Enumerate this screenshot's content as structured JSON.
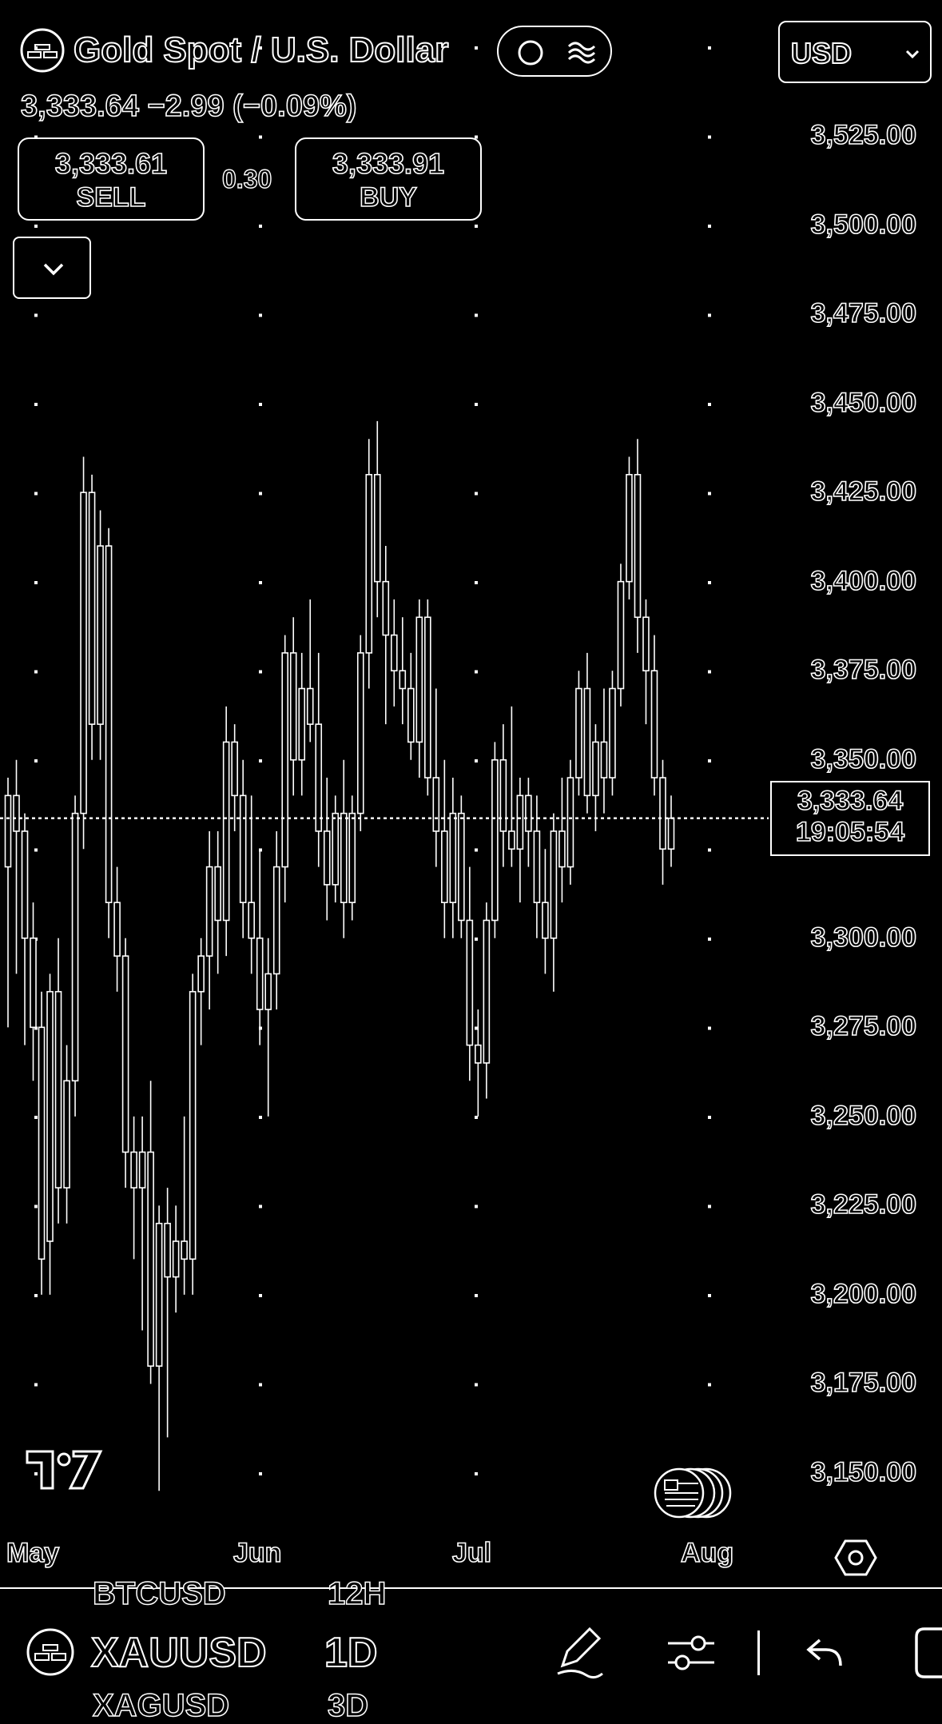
{
  "header": {
    "title": "Gold Spot / U.S. Dollar",
    "price_line": "3,333.64 −2.99 (−0.09%)",
    "currency": "USD",
    "icons": [
      "gold-bars-icon",
      "circle-icon",
      "waves-icon",
      "chevron-down-icon"
    ]
  },
  "trade": {
    "sell_price": "3,333.61",
    "sell_label": "SELL",
    "spread": "0.30",
    "buy_price": "3,333.91",
    "buy_label": "BUY"
  },
  "chart": {
    "current_price": "3,333.64",
    "countdown": "19:05:54"
  },
  "chart_data": {
    "type": "candlestick",
    "symbol": "XAUUSD",
    "interval": "1D",
    "y_ticks": [
      "3,525.00",
      "3,500.00",
      "3,475.00",
      "3,450.00",
      "3,425.00",
      "3,400.00",
      "3,375.00",
      "3,350.00",
      "3,300.00",
      "3,275.00",
      "3,250.00",
      "3,225.00",
      "3,200.00",
      "3,175.00",
      "3,150.00"
    ],
    "ylim": [
      3130,
      3545
    ],
    "x_ticks": [
      "May",
      "Jun",
      "Jul",
      "Aug"
    ],
    "last_price": 3333.64,
    "candles": [
      {
        "o": 3320,
        "h": 3345,
        "l": 3275,
        "c": 3340
      },
      {
        "o": 3340,
        "h": 3350,
        "l": 3290,
        "c": 3330
      },
      {
        "o": 3330,
        "h": 3335,
        "l": 3270,
        "c": 3300
      },
      {
        "o": 3300,
        "h": 3310,
        "l": 3260,
        "c": 3275
      },
      {
        "o": 3275,
        "h": 3285,
        "l": 3200,
        "c": 3210
      },
      {
        "o": 3215,
        "h": 3290,
        "l": 3200,
        "c": 3285
      },
      {
        "o": 3285,
        "h": 3300,
        "l": 3220,
        "c": 3230
      },
      {
        "o": 3230,
        "h": 3270,
        "l": 3220,
        "c": 3260
      },
      {
        "o": 3260,
        "h": 3340,
        "l": 3250,
        "c": 3335
      },
      {
        "o": 3335,
        "h": 3435,
        "l": 3325,
        "c": 3425
      },
      {
        "o": 3425,
        "h": 3430,
        "l": 3350,
        "c": 3360
      },
      {
        "o": 3360,
        "h": 3420,
        "l": 3350,
        "c": 3410
      },
      {
        "o": 3410,
        "h": 3415,
        "l": 3300,
        "c": 3310
      },
      {
        "o": 3310,
        "h": 3320,
        "l": 3285,
        "c": 3295
      },
      {
        "o": 3295,
        "h": 3300,
        "l": 3230,
        "c": 3240
      },
      {
        "o": 3240,
        "h": 3250,
        "l": 3210,
        "c": 3230
      },
      {
        "o": 3230,
        "h": 3250,
        "l": 3190,
        "c": 3240
      },
      {
        "o": 3240,
        "h": 3260,
        "l": 3175,
        "c": 3180
      },
      {
        "o": 3180,
        "h": 3225,
        "l": 3145,
        "c": 3220
      },
      {
        "o": 3220,
        "h": 3230,
        "l": 3160,
        "c": 3205
      },
      {
        "o": 3205,
        "h": 3225,
        "l": 3195,
        "c": 3215
      },
      {
        "o": 3215,
        "h": 3250,
        "l": 3200,
        "c": 3210
      },
      {
        "o": 3210,
        "h": 3290,
        "l": 3200,
        "c": 3285
      },
      {
        "o": 3285,
        "h": 3300,
        "l": 3270,
        "c": 3295
      },
      {
        "o": 3295,
        "h": 3330,
        "l": 3280,
        "c": 3320
      },
      {
        "o": 3320,
        "h": 3330,
        "l": 3290,
        "c": 3305
      },
      {
        "o": 3305,
        "h": 3365,
        "l": 3295,
        "c": 3355
      },
      {
        "o": 3355,
        "h": 3360,
        "l": 3330,
        "c": 3340
      },
      {
        "o": 3340,
        "h": 3350,
        "l": 3300,
        "c": 3310
      },
      {
        "o": 3310,
        "h": 3340,
        "l": 3290,
        "c": 3300
      },
      {
        "o": 3300,
        "h": 3325,
        "l": 3270,
        "c": 3280
      },
      {
        "o": 3280,
        "h": 3300,
        "l": 3250,
        "c": 3290
      },
      {
        "o": 3290,
        "h": 3330,
        "l": 3280,
        "c": 3320
      },
      {
        "o": 3320,
        "h": 3385,
        "l": 3310,
        "c": 3380
      },
      {
        "o": 3380,
        "h": 3390,
        "l": 3340,
        "c": 3350
      },
      {
        "o": 3350,
        "h": 3380,
        "l": 3340,
        "c": 3370
      },
      {
        "o": 3370,
        "h": 3395,
        "l": 3355,
        "c": 3360
      },
      {
        "o": 3360,
        "h": 3380,
        "l": 3320,
        "c": 3330
      },
      {
        "o": 3330,
        "h": 3345,
        "l": 3305,
        "c": 3315
      },
      {
        "o": 3315,
        "h": 3340,
        "l": 3310,
        "c": 3335
      },
      {
        "o": 3335,
        "h": 3350,
        "l": 3300,
        "c": 3310
      },
      {
        "o": 3310,
        "h": 3340,
        "l": 3305,
        "c": 3335
      },
      {
        "o": 3335,
        "h": 3385,
        "l": 3330,
        "c": 3380
      },
      {
        "o": 3380,
        "h": 3440,
        "l": 3370,
        "c": 3430
      },
      {
        "o": 3430,
        "h": 3445,
        "l": 3390,
        "c": 3400
      },
      {
        "o": 3400,
        "h": 3410,
        "l": 3360,
        "c": 3385
      },
      {
        "o": 3385,
        "h": 3395,
        "l": 3365,
        "c": 3375
      },
      {
        "o": 3375,
        "h": 3390,
        "l": 3360,
        "c": 3370
      },
      {
        "o": 3370,
        "h": 3380,
        "l": 3350,
        "c": 3355
      },
      {
        "o": 3355,
        "h": 3395,
        "l": 3345,
        "c": 3390
      },
      {
        "o": 3390,
        "h": 3395,
        "l": 3340,
        "c": 3345
      },
      {
        "o": 3345,
        "h": 3370,
        "l": 3320,
        "c": 3330
      },
      {
        "o": 3330,
        "h": 3350,
        "l": 3300,
        "c": 3310
      },
      {
        "o": 3310,
        "h": 3345,
        "l": 3300,
        "c": 3335
      },
      {
        "o": 3335,
        "h": 3340,
        "l": 3300,
        "c": 3305
      },
      {
        "o": 3305,
        "h": 3320,
        "l": 3260,
        "c": 3270
      },
      {
        "o": 3270,
        "h": 3280,
        "l": 3250,
        "c": 3265
      },
      {
        "o": 3265,
        "h": 3310,
        "l": 3255,
        "c": 3305
      },
      {
        "o": 3305,
        "h": 3355,
        "l": 3300,
        "c": 3350
      },
      {
        "o": 3350,
        "h": 3360,
        "l": 3320,
        "c": 3330
      },
      {
        "o": 3330,
        "h": 3365,
        "l": 3320,
        "c": 3325
      },
      {
        "o": 3325,
        "h": 3345,
        "l": 3310,
        "c": 3340
      },
      {
        "o": 3340,
        "h": 3345,
        "l": 3320,
        "c": 3330
      },
      {
        "o": 3330,
        "h": 3340,
        "l": 3300,
        "c": 3310
      },
      {
        "o": 3310,
        "h": 3325,
        "l": 3290,
        "c": 3300
      },
      {
        "o": 3300,
        "h": 3335,
        "l": 3285,
        "c": 3330
      },
      {
        "o": 3330,
        "h": 3345,
        "l": 3310,
        "c": 3320
      },
      {
        "o": 3320,
        "h": 3350,
        "l": 3315,
        "c": 3345
      },
      {
        "o": 3345,
        "h": 3375,
        "l": 3340,
        "c": 3370
      },
      {
        "o": 3370,
        "h": 3380,
        "l": 3335,
        "c": 3340
      },
      {
        "o": 3340,
        "h": 3360,
        "l": 3330,
        "c": 3355
      },
      {
        "o": 3355,
        "h": 3370,
        "l": 3335,
        "c": 3345
      },
      {
        "o": 3345,
        "h": 3375,
        "l": 3340,
        "c": 3370
      },
      {
        "o": 3370,
        "h": 3405,
        "l": 3365,
        "c": 3400
      },
      {
        "o": 3400,
        "h": 3435,
        "l": 3395,
        "c": 3430
      },
      {
        "o": 3430,
        "h": 3440,
        "l": 3380,
        "c": 3390
      },
      {
        "o": 3390,
        "h": 3395,
        "l": 3360,
        "c": 3375
      },
      {
        "o": 3375,
        "h": 3385,
        "l": 3340,
        "c": 3345
      },
      {
        "o": 3345,
        "h": 3350,
        "l": 3315,
        "c": 3325
      },
      {
        "o": 3325,
        "h": 3340,
        "l": 3320,
        "c": 3333.64
      }
    ]
  },
  "watermark": {
    "logo_text": "TV"
  },
  "axis_footer": {
    "settings_icon": "settings-hex-icon"
  },
  "bottom_bar": {
    "prev_symbol": "BTCUSD",
    "prev_interval": "12H",
    "symbol": "XAUUSD",
    "interval": "1D",
    "next_symbol": "XAGUSD",
    "next_interval": "3D",
    "icons": [
      "pen-icon",
      "sliders-icon",
      "undo-icon",
      "fullscreen-icon"
    ]
  }
}
